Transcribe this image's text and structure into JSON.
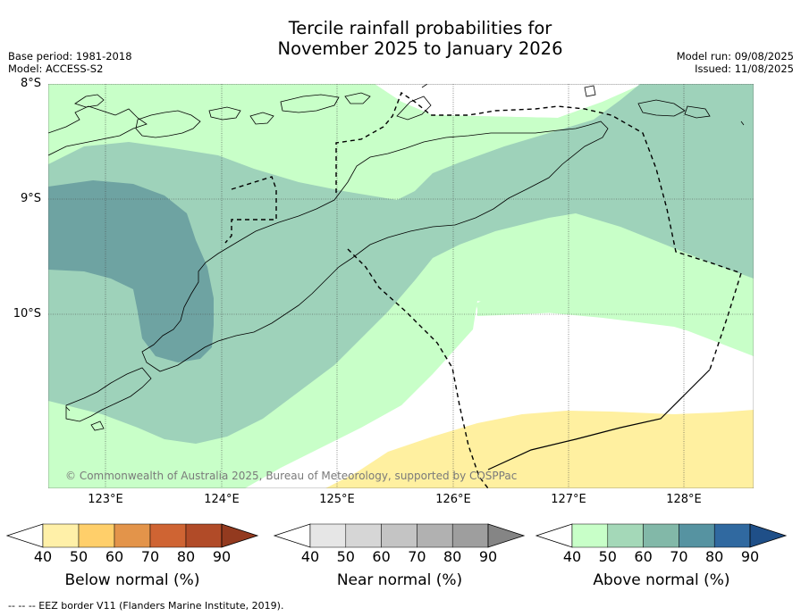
{
  "title_line1": "Tercile rainfall probabilities for",
  "title_line2": "November 2025 to January 2026",
  "base_period": "Base period: 1981-2018",
  "model": "Model: ACCESS-S2",
  "model_run": "Model run: 09/08/2025",
  "issued": "Issued: 11/08/2025",
  "copyright": "© Commonwealth of Australia 2025, Bureau of Meteorology, supported by COSPPac",
  "footnote": "--  --  -- EEZ border V11 (Flanders Marine Institute, 2019).",
  "lat_labels": [
    "8°S",
    "9°S",
    "10°S"
  ],
  "lon_labels": [
    "123°E",
    "124°E",
    "125°E",
    "126°E",
    "127°E",
    "128°E"
  ],
  "colorbars": [
    {
      "label": "Below normal (%)",
      "ticks": [
        "40",
        "50",
        "60",
        "70",
        "80",
        "90"
      ],
      "colors": [
        "#fff0a8",
        "#ffcf6a",
        "#e3944a",
        "#cf6433",
        "#b14b28"
      ],
      "extend_color": "#933a1f"
    },
    {
      "label": "Near normal (%)",
      "ticks": [
        "40",
        "50",
        "60",
        "70",
        "80",
        "90"
      ],
      "colors": [
        "#e6e6e6",
        "#d6d6d6",
        "#c4c4c4",
        "#b1b1b1",
        "#9e9e9e"
      ],
      "extend_color": "#858585"
    },
    {
      "label": "Above normal (%)",
      "ticks": [
        "40",
        "50",
        "60",
        "70",
        "80",
        "90"
      ],
      "colors": [
        "#c8ffc8",
        "#a4d8b8",
        "#82b8a8",
        "#5693a1",
        "#3069a0"
      ],
      "extend_color": "#1f4f88"
    }
  ],
  "colors": {
    "above_40": "#c8ffc8",
    "above_50": "#9ed2ba",
    "above_60": "#6ea3a2",
    "below_40": "#fff0a0"
  }
}
